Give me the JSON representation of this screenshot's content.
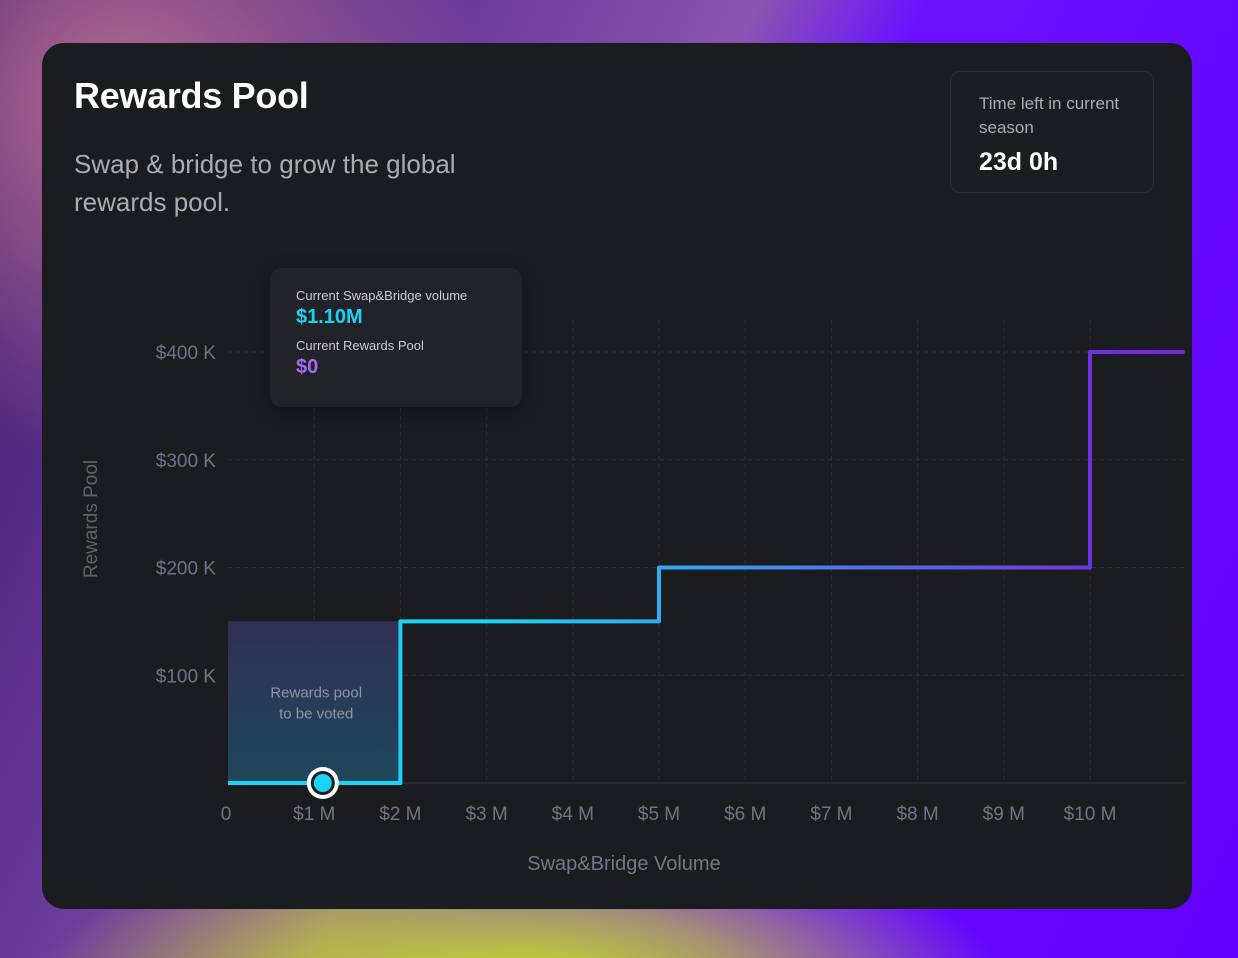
{
  "card": {
    "title": "Rewards Pool",
    "subtitle": "Swap & bridge to grow the global rewards pool."
  },
  "season": {
    "label": "Time left in current season",
    "value": "23d 0h"
  },
  "tooltip": {
    "volume_label": "Current Swap&Bridge volume",
    "volume_value": "$1.10M",
    "pool_label": "Current Rewards Pool",
    "pool_value": "$0"
  },
  "highlight": {
    "label_line1": "Rewards pool",
    "label_line2": "to be voted"
  },
  "colors": {
    "line_start": "#19d4f5",
    "line_end": "#7a22e0",
    "volume_accent": "#19d4f5",
    "pool_accent": "#a56bf5"
  },
  "chart_data": {
    "type": "line",
    "step": true,
    "xlabel": "Swap&Bridge Volume",
    "ylabel": "Rewards Pool",
    "xlim": [
      0,
      11.1
    ],
    "ylim": [
      0,
      400
    ],
    "x_ticks": [
      0,
      1,
      2,
      3,
      4,
      5,
      6,
      7,
      8,
      9,
      10
    ],
    "x_tick_labels": [
      "0",
      "$1 M",
      "$2 M",
      "$3 M",
      "$4 M",
      "$5 M",
      "$6 M",
      "$7 M",
      "$8 M",
      "$9 M",
      "$10 M"
    ],
    "y_ticks": [
      100,
      200,
      300,
      400
    ],
    "y_tick_labels": [
      "$100 K",
      "$200 K",
      "$300 K",
      "$400 K"
    ],
    "grid": true,
    "series": [
      {
        "x": [
          0,
          2,
          2,
          5,
          5,
          10,
          10,
          11.1
        ],
        "y": [
          0,
          0,
          150,
          150,
          200,
          200,
          400,
          400
        ]
      }
    ],
    "highlight_region": {
      "x": [
        0,
        2
      ],
      "y": [
        0,
        150
      ]
    },
    "current_point": {
      "x": 1.1,
      "y": 0
    }
  }
}
